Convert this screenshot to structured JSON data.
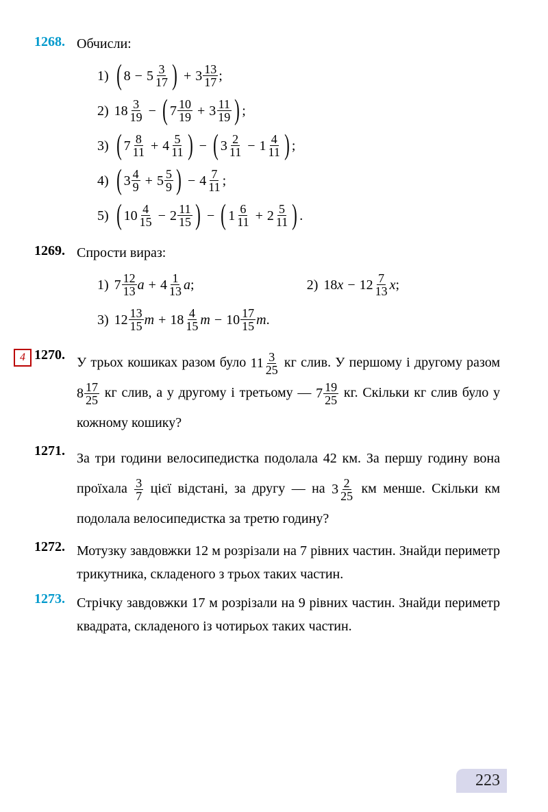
{
  "page_number": "223",
  "problems": [
    {
      "num": "1268.",
      "num_color": "blue",
      "title": "Обчисли:",
      "items": [
        {
          "label": "1)",
          "expr": [
            [
              "lp"
            ],
            [
              "n",
              "8"
            ],
            [
              "op",
              " − "
            ],
            [
              "mix",
              "5",
              "3",
              "17"
            ],
            [
              "rp"
            ],
            [
              "op",
              " + "
            ],
            [
              "mix",
              "3",
              "13",
              "17"
            ],
            [
              "t",
              ";"
            ]
          ]
        },
        {
          "label": "2)",
          "expr": [
            [
              "mix",
              "18",
              "3",
              "19"
            ],
            [
              "op",
              " − "
            ],
            [
              "lp"
            ],
            [
              "mix",
              "7",
              "10",
              "19"
            ],
            [
              "op",
              " + "
            ],
            [
              "mix",
              "3",
              "11",
              "19"
            ],
            [
              "rp"
            ],
            [
              "t",
              ";"
            ]
          ]
        },
        {
          "label": "3)",
          "expr": [
            [
              "lp"
            ],
            [
              "mix",
              "7",
              "8",
              "11"
            ],
            [
              "op",
              " + "
            ],
            [
              "mix",
              "4",
              "5",
              "11"
            ],
            [
              "rp"
            ],
            [
              "op",
              " − "
            ],
            [
              "lp"
            ],
            [
              "mix",
              "3",
              "2",
              "11"
            ],
            [
              "op",
              " − "
            ],
            [
              "mix",
              "1",
              "4",
              "11"
            ],
            [
              "rp"
            ],
            [
              "t",
              ";"
            ]
          ]
        },
        {
          "label": "4)",
          "expr": [
            [
              "lp"
            ],
            [
              "mix",
              "3",
              "4",
              "9"
            ],
            [
              "op",
              " + "
            ],
            [
              "mix",
              "5",
              "5",
              "9"
            ],
            [
              "rp"
            ],
            [
              "op",
              " − "
            ],
            [
              "mix",
              "4",
              "7",
              "11"
            ],
            [
              "t",
              ";"
            ]
          ]
        },
        {
          "label": "5)",
          "expr": [
            [
              "lp"
            ],
            [
              "mix",
              "10",
              "4",
              "15"
            ],
            [
              "op",
              " − "
            ],
            [
              "mix",
              "2",
              "11",
              "15"
            ],
            [
              "rp"
            ],
            [
              "op",
              " − "
            ],
            [
              "lp"
            ],
            [
              "mix",
              "1",
              "6",
              "11"
            ],
            [
              "op",
              " + "
            ],
            [
              "mix",
              "2",
              "5",
              "11"
            ],
            [
              "rp"
            ],
            [
              "t",
              "."
            ]
          ]
        }
      ]
    },
    {
      "num": "1269.",
      "title": "Спрости вираз:",
      "twocol": [
        {
          "label": "1)",
          "expr": [
            [
              "mix",
              "7",
              "12",
              "13"
            ],
            [
              "var",
              "a"
            ],
            [
              "op",
              " + "
            ],
            [
              "mix",
              "4",
              "1",
              "13"
            ],
            [
              "var",
              "a"
            ],
            [
              "t",
              ";"
            ]
          ]
        },
        {
          "label": "2)",
          "expr": [
            [
              "n",
              "18"
            ],
            [
              "var",
              "x"
            ],
            [
              "op",
              " − "
            ],
            [
              "mix",
              "12",
              "7",
              "13"
            ],
            [
              "var",
              "x"
            ],
            [
              "t",
              ";"
            ]
          ]
        }
      ],
      "items2": [
        {
          "label": "3)",
          "expr": [
            [
              "mix",
              "12",
              "13",
              "15"
            ],
            [
              "var",
              "m"
            ],
            [
              "op",
              " + "
            ],
            [
              "mix",
              "18",
              "4",
              "15"
            ],
            [
              "var",
              "m"
            ],
            [
              "op",
              " − "
            ],
            [
              "mix",
              "10",
              "17",
              "15"
            ],
            [
              "var",
              "m"
            ],
            [
              "t",
              "."
            ]
          ]
        }
      ]
    },
    {
      "num": "1270.",
      "marker": "4",
      "text_parts": [
        "У трьох кошиках разом було ",
        {
          "mix": [
            "11",
            "3",
            "25"
          ]
        },
        " кг слив. У першому і другому разом ",
        {
          "mix": [
            "8",
            "17",
            "25"
          ]
        },
        " кг слив, а у другому і третьому — ",
        {
          "mix": [
            "7",
            "19",
            "25"
          ]
        },
        " кг. Скільки кг слив було у кожному кошику?"
      ]
    },
    {
      "num": "1271.",
      "text_parts": [
        "За три години велосипедистка подолала 42 км. За першу годину вона проїхала ",
        {
          "frac": [
            "3",
            "7"
          ]
        },
        " цієї відстані, за другу — на ",
        {
          "mix": [
            "3",
            "2",
            "25"
          ]
        },
        " км менше. Скільки км подолала велосипедистка за третю годину?"
      ]
    },
    {
      "num": "1272.",
      "plain": "Мотузку завдовжки 12 м розрізали на 7 рівних частин. Знайди периметр трикутника, складеного з трьох таких частин."
    },
    {
      "num": "1273.",
      "num_color": "blue",
      "plain": "Стрічку завдовжки 17 м розрізали на 9 рівних частин. Знайди периметр квадрата, складеного із чотирьох таких частин."
    }
  ]
}
